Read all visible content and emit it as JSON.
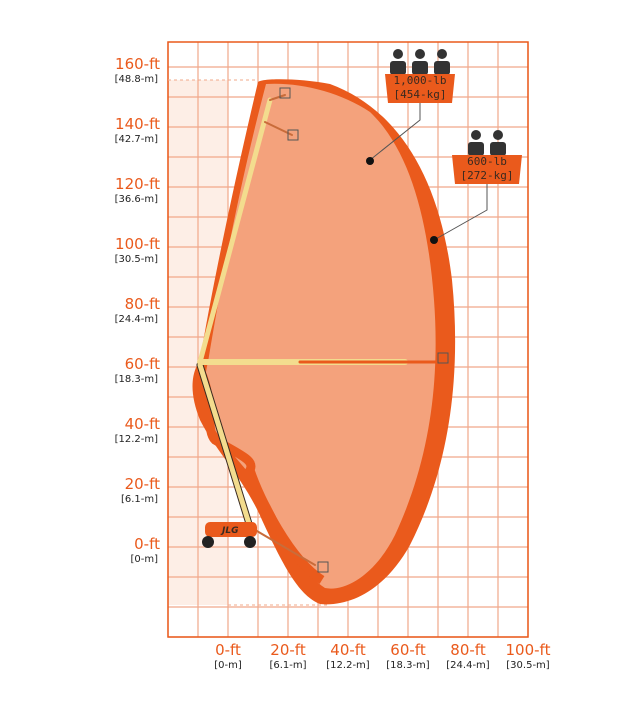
{
  "y_axis": [
    {
      "ft": "160-ft",
      "m": "[48.8-m]",
      "value": 160
    },
    {
      "ft": "140-ft",
      "m": "[42.7-m]",
      "value": 140
    },
    {
      "ft": "120-ft",
      "m": "[36.6-m]",
      "value": 120
    },
    {
      "ft": "100-ft",
      "m": "[30.5-m]",
      "value": 100
    },
    {
      "ft": "80-ft",
      "m": "[24.4-m]",
      "value": 80
    },
    {
      "ft": "60-ft",
      "m": "[18.3-m]",
      "value": 60
    },
    {
      "ft": "40-ft",
      "m": "[12.2-m]",
      "value": 40
    },
    {
      "ft": "20-ft",
      "m": "[6.1-m]",
      "value": 20
    },
    {
      "ft": "0-ft",
      "m": "[0-m]",
      "value": 0
    }
  ],
  "x_axis": [
    {
      "ft": "0-ft",
      "m": "[0-m]",
      "value": 0
    },
    {
      "ft": "20-ft",
      "m": "[6.1-m]",
      "value": 20
    },
    {
      "ft": "40-ft",
      "m": "[12.2-m]",
      "value": 40
    },
    {
      "ft": "60-ft",
      "m": "[18.3-m]",
      "value": 60
    },
    {
      "ft": "80-ft",
      "m": "[24.4-m]",
      "value": 80
    },
    {
      "ft": "100-ft",
      "m": "[30.5-m]",
      "value": 100
    }
  ],
  "capacities": {
    "restricted": {
      "lb": "1,000-lb",
      "kg": "[454-kg]",
      "occupants": 3
    },
    "unrestricted": {
      "lb": "600-lb",
      "kg": "[272-kg]",
      "occupants": 2
    }
  },
  "machine_logo": "JLG",
  "colors": {
    "accent": "#ea5a1c",
    "inner_zone": "#f4a27c",
    "boom": "#f3dc8e",
    "grid": "#f1a88a"
  }
}
